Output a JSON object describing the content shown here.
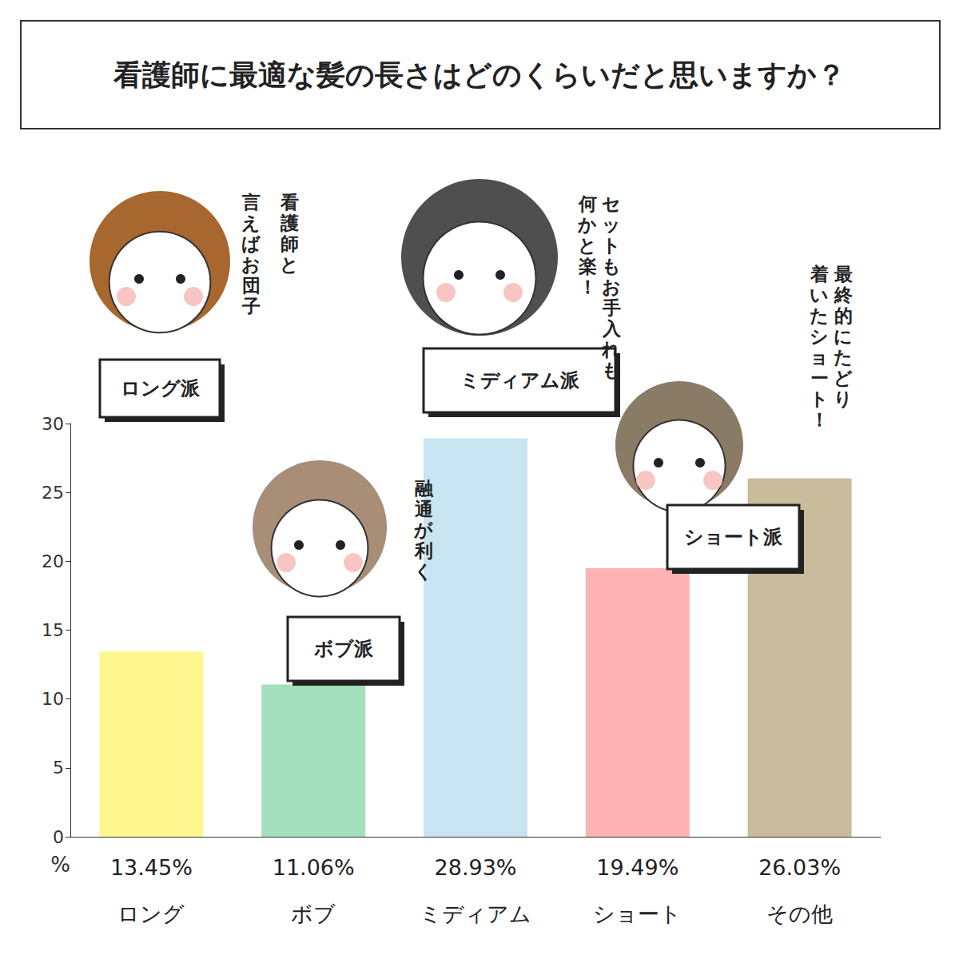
{
  "chart_data": {
    "type": "bar",
    "title": "看護師に最適な髪の長さはどのくらいだと思いますか？",
    "ylabel": "%",
    "categories": [
      "ロング",
      "ボブ",
      "ミディアム",
      "ショート",
      "その他"
    ],
    "values": [
      13.45,
      11.06,
      28.93,
      19.49,
      26.03
    ],
    "value_labels": [
      "13.45%",
      "11.06%",
      "28.93%",
      "19.49%",
      "26.03%"
    ],
    "data_labels": true,
    "colors": [
      "#fef68f",
      "#a3e0bb",
      "#c9e4f1",
      "#ffb3b5",
      "#c9bc9c"
    ],
    "ylim": [
      0,
      30
    ],
    "yticks": [
      0,
      5,
      10,
      15,
      20,
      25,
      30
    ],
    "grid": false,
    "annotations": [
      {
        "badge": "ロング派",
        "comment": [
          "看護師と",
          "言えばお団子"
        ]
      },
      {
        "badge": "ボブ派",
        "comment": [
          "融通が利く"
        ]
      },
      {
        "badge": "ミディアム派",
        "comment": [
          "セットもお手入れも",
          "何かと楽！"
        ]
      },
      {
        "badge": "ショート派",
        "comment": [
          "最終的にたどり",
          "着いたショート！"
        ]
      }
    ]
  }
}
